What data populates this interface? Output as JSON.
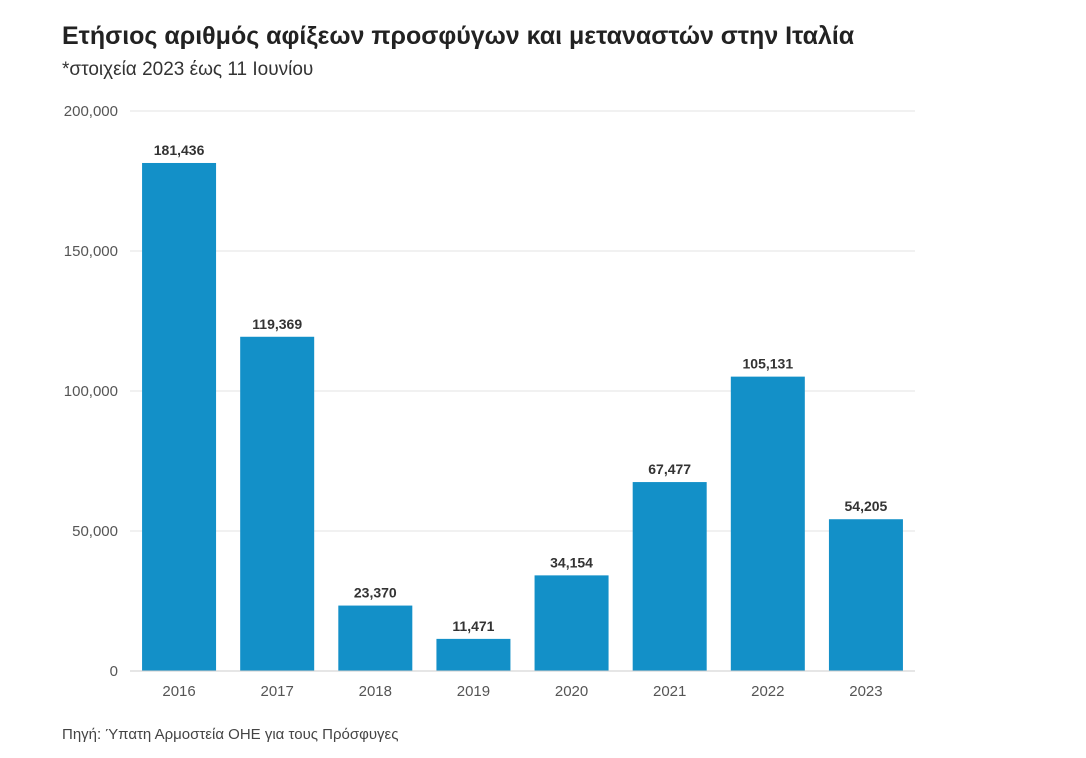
{
  "header": {
    "title": "Ετήσιος αριθμός αφίξεων προσφύγων και μεταναστών στην Ιταλία",
    "subtitle": "*στοιχεία 2023 έως 11 Ιουνίου"
  },
  "footer": {
    "source": "Πηγή: Ύπατη Αρμοστεία ΟΗΕ για τους Πρόσφυγες"
  },
  "colors": {
    "bar": "#1390c8",
    "grid": "#e3e3e3",
    "axis_text": "#555555",
    "label_text": "#333333"
  },
  "chart_data": {
    "type": "bar",
    "categories": [
      "2016",
      "2017",
      "2018",
      "2019",
      "2020",
      "2021",
      "2022",
      "2023"
    ],
    "values": [
      181436,
      119369,
      23370,
      11471,
      34154,
      67477,
      105131,
      54205
    ],
    "value_labels": [
      "181,436",
      "119,369",
      "23,370",
      "11,471",
      "34,154",
      "67,477",
      "105,131",
      "54,205"
    ],
    "yticks": [
      0,
      50000,
      100000,
      150000,
      200000
    ],
    "ytick_labels": [
      "0",
      "50,000",
      "100,000",
      "150,000",
      "200,000"
    ],
    "ylim": [
      0,
      200000
    ],
    "grid": true,
    "title": "Ετήσιος αριθμός αφίξεων προσφύγων και μεταναστών στην Ιταλία",
    "xlabel": "",
    "ylabel": ""
  }
}
